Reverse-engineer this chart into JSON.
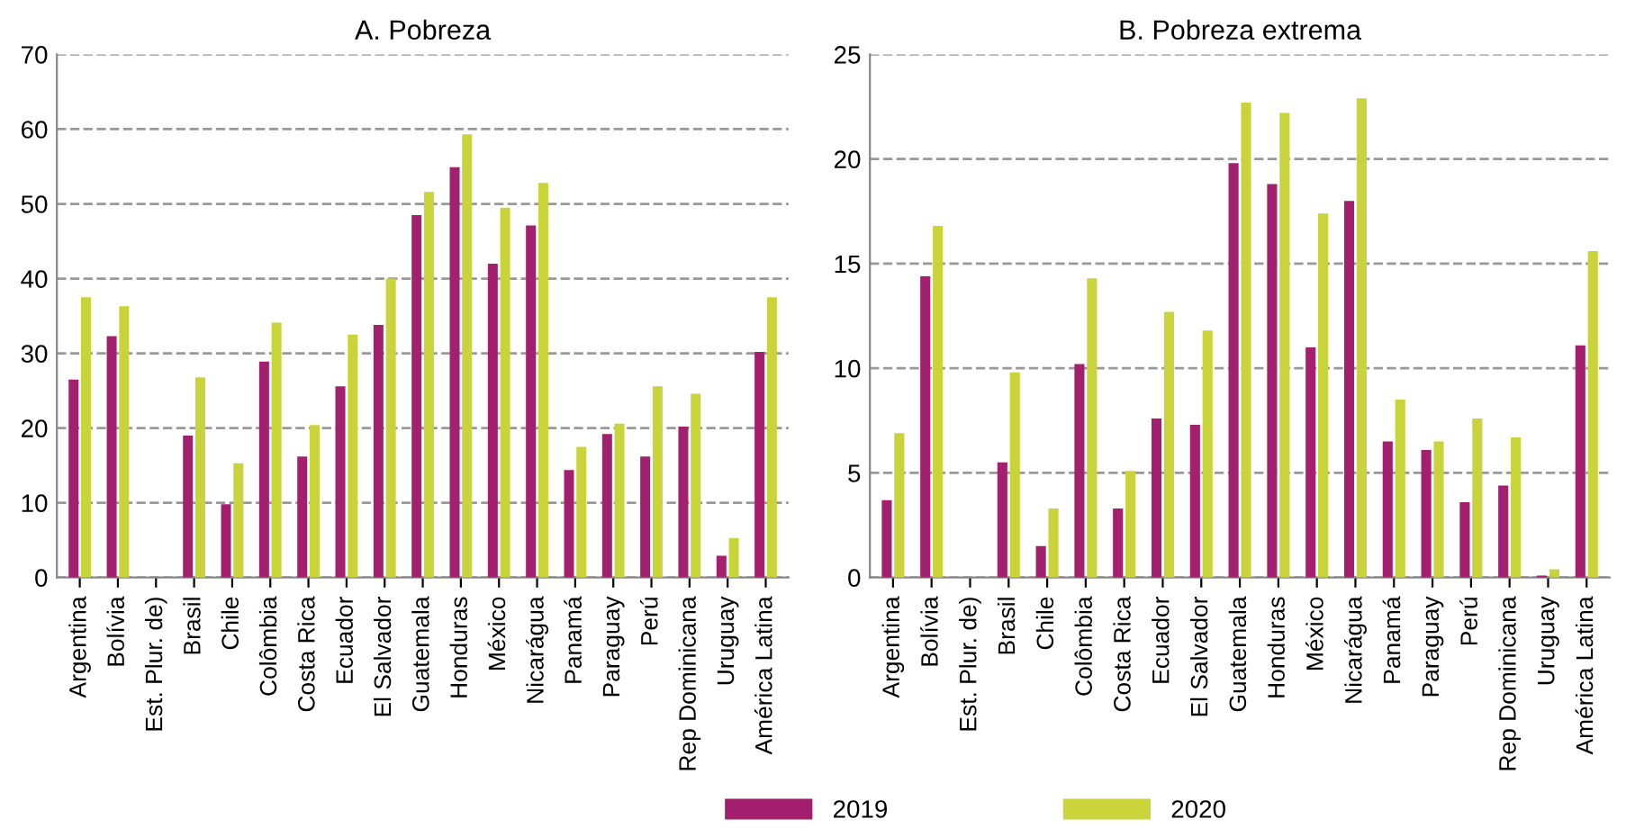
{
  "chart_data": [
    {
      "type": "bar",
      "title": "A. Pobreza",
      "categories": [
        "Argentina",
        "Bolívia",
        "Est. Plur. de)",
        "Brasil",
        "Chile",
        "Colômbia",
        "Costa Rica",
        "Ecuador",
        "El Salvador",
        "Guatemala",
        "Honduras",
        "México",
        "Nicarágua",
        "Panamá",
        "Paraguay",
        "Perú",
        "Rep Dominicana",
        "Uruguay",
        "América Latina"
      ],
      "series": [
        {
          "name": "2019",
          "color": "#a3206e",
          "values": [
            26.5,
            32.3,
            null,
            19.0,
            9.8,
            28.9,
            16.2,
            25.6,
            33.8,
            48.5,
            54.9,
            42.0,
            47.1,
            14.4,
            19.2,
            16.2,
            20.2,
            2.9,
            30.2
          ]
        },
        {
          "name": "2020",
          "color": "#c8d43a",
          "values": [
            37.5,
            36.3,
            null,
            26.8,
            15.3,
            34.1,
            20.4,
            32.5,
            40.0,
            51.6,
            59.3,
            49.5,
            52.8,
            17.5,
            20.6,
            25.6,
            24.6,
            5.3,
            37.5
          ]
        }
      ],
      "ylim": [
        0,
        70
      ],
      "yticks": [
        0,
        10,
        20,
        30,
        40,
        50,
        60,
        70
      ],
      "grid": "y",
      "legend": "bottom"
    },
    {
      "type": "bar",
      "title": "B. Pobreza extrema",
      "categories": [
        "Argentina",
        "Bolívia",
        "Est. Plur. de)",
        "Brasil",
        "Chile",
        "Colômbia",
        "Costa Rica",
        "Ecuador",
        "El Salvador",
        "Guatemala",
        "Honduras",
        "México",
        "Nicarágua",
        "Panamá",
        "Paraguay",
        "Perú",
        "Rep Dominicana",
        "Uruguay",
        "América Latina"
      ],
      "series": [
        {
          "name": "2019",
          "color": "#a3206e",
          "values": [
            3.7,
            14.4,
            null,
            5.5,
            1.5,
            10.2,
            3.3,
            7.6,
            7.3,
            19.8,
            18.8,
            11.0,
            18.0,
            6.5,
            6.1,
            3.6,
            4.4,
            0.1,
            11.1
          ]
        },
        {
          "name": "2020",
          "color": "#c8d43a",
          "values": [
            6.9,
            16.8,
            null,
            9.8,
            3.3,
            14.3,
            5.1,
            12.7,
            11.8,
            22.7,
            22.2,
            17.4,
            22.9,
            8.5,
            6.5,
            7.6,
            6.7,
            0.4,
            15.6
          ]
        }
      ],
      "ylim": [
        0,
        25
      ],
      "yticks": [
        0,
        5,
        10,
        15,
        20,
        25
      ],
      "grid": "y"
    }
  ]
}
